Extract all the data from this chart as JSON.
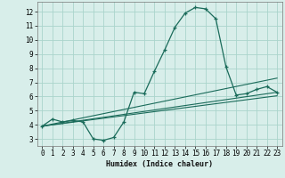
{
  "xlabel": "Humidex (Indice chaleur)",
  "background_color": "#d8eeea",
  "grid_color": "#aad4cc",
  "line_color": "#1a6b5a",
  "xlim": [
    -0.5,
    23.5
  ],
  "ylim": [
    2.5,
    12.7
  ],
  "xticks": [
    0,
    1,
    2,
    3,
    4,
    5,
    6,
    7,
    8,
    9,
    10,
    11,
    12,
    13,
    14,
    15,
    16,
    17,
    18,
    19,
    20,
    21,
    22,
    23
  ],
  "yticks": [
    3,
    4,
    5,
    6,
    7,
    8,
    9,
    10,
    11,
    12
  ],
  "series1_x": [
    0,
    1,
    2,
    3,
    4,
    5,
    6,
    7,
    8,
    9,
    10,
    11,
    12,
    13,
    14,
    15,
    16,
    17,
    18,
    19,
    20,
    21,
    22,
    23
  ],
  "series1_y": [
    3.9,
    4.4,
    4.2,
    4.3,
    4.2,
    3.0,
    2.9,
    3.1,
    4.2,
    6.3,
    6.2,
    7.8,
    9.3,
    10.9,
    11.9,
    12.3,
    12.2,
    11.5,
    8.1,
    6.1,
    6.2,
    6.5,
    6.7,
    6.3
  ],
  "series2_x": [
    0,
    23
  ],
  "series2_y": [
    3.9,
    7.3
  ],
  "series3_x": [
    0,
    23
  ],
  "series3_y": [
    3.9,
    6.3
  ],
  "series4_x": [
    0,
    23
  ],
  "series4_y": [
    3.9,
    6.05
  ]
}
